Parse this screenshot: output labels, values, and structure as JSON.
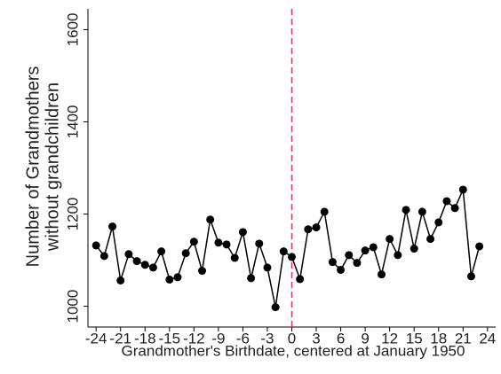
{
  "chart_data": {
    "type": "line",
    "xlabel": "Grandmother's Birthdate, centered at January 1950",
    "ylabel": [
      "Number of Grandmothers",
      "without grandchildren"
    ],
    "x": [
      -24,
      -23,
      -22,
      -21,
      -20,
      -19,
      -18,
      -17,
      -16,
      -15,
      -14,
      -13,
      -12,
      -11,
      -10,
      -9,
      -8,
      -7,
      -6,
      -5,
      -4,
      -3,
      -2,
      -1,
      0,
      1,
      2,
      3,
      4,
      5,
      6,
      7,
      8,
      9,
      10,
      11,
      12,
      13,
      14,
      15,
      16,
      17,
      18,
      19,
      20,
      21,
      22,
      23
    ],
    "series": [
      {
        "color": "#000000",
        "values": [
          1132,
          1109,
          1173,
          1056,
          1113,
          1098,
          1090,
          1084,
          1119,
          1058,
          1063,
          1115,
          1140,
          1077,
          1188,
          1138,
          1134,
          1105,
          1161,
          1061,
          1136,
          1084,
          998,
          1119,
          1107,
          1059,
          1167,
          1171,
          1205,
          1096,
          1079,
          1111,
          1094,
          1121,
          1128,
          1069,
          1146,
          1111,
          1209,
          1125,
          1205,
          1146,
          1182,
          1228,
          1213,
          1253,
          1065,
          1130
        ]
      }
    ],
    "xlim": [
      -25,
      25
    ],
    "ylim": [
      955,
      1645
    ],
    "xticks": [
      -24,
      -21,
      -18,
      -15,
      -12,
      -9,
      -6,
      -3,
      0,
      3,
      6,
      9,
      12,
      15,
      18,
      21,
      24
    ],
    "yticks": [
      1000,
      1200,
      1400,
      1600
    ],
    "vline": {
      "x": 0,
      "color": "#d6336c"
    }
  }
}
